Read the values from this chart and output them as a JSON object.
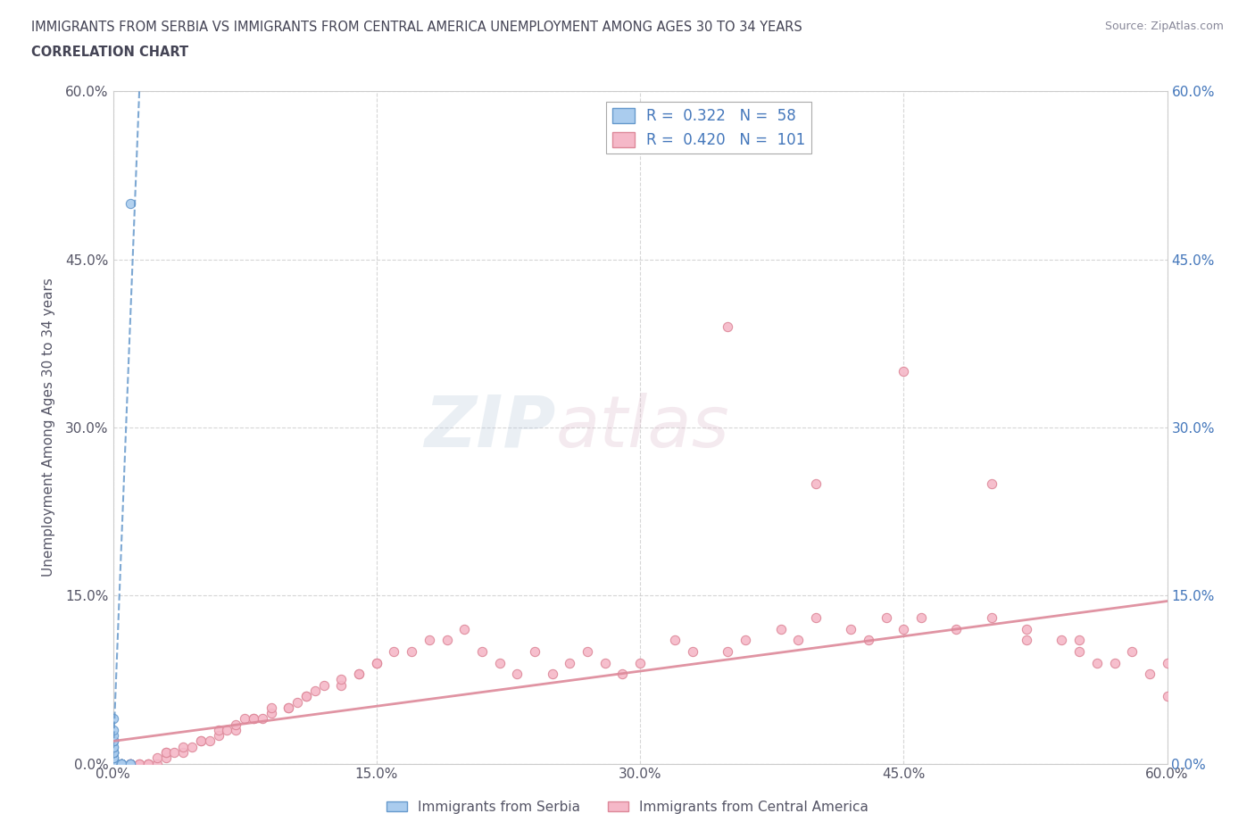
{
  "title_line1": "IMMIGRANTS FROM SERBIA VS IMMIGRANTS FROM CENTRAL AMERICA UNEMPLOYMENT AMONG AGES 30 TO 34 YEARS",
  "title_line2": "CORRELATION CHART",
  "source": "Source: ZipAtlas.com",
  "ylabel": "Unemployment Among Ages 30 to 34 years",
  "xlim": [
    0.0,
    0.6
  ],
  "ylim": [
    0.0,
    0.6
  ],
  "xticks": [
    0.0,
    0.15,
    0.3,
    0.45,
    0.6
  ],
  "yticks": [
    0.0,
    0.15,
    0.3,
    0.45,
    0.6
  ],
  "serbia_color": "#aaccee",
  "serbia_edge_color": "#6699cc",
  "ca_color": "#f5b8c8",
  "ca_edge_color": "#dd8899",
  "serbia_R": 0.322,
  "serbia_N": 58,
  "ca_R": 0.42,
  "ca_N": 101,
  "serbia_trend_color": "#6699cc",
  "ca_trend_color": "#dd8899",
  "legend_label_serbia": "Immigrants from Serbia",
  "legend_label_ca": "Immigrants from Central America",
  "watermark_zip": "ZIP",
  "watermark_atlas": "atlas",
  "background_color": "#ffffff",
  "grid_color": "#cccccc",
  "title_color": "#444455",
  "axis_label_color": "#555566",
  "tick_color": "#555566",
  "right_tick_color": "#4477bb",
  "source_color": "#888899",
  "serbia_x": [
    0.0,
    0.0,
    0.0,
    0.0,
    0.0,
    0.0,
    0.0,
    0.0,
    0.0,
    0.0,
    0.0,
    0.0,
    0.0,
    0.0,
    0.0,
    0.0,
    0.0,
    0.0,
    0.0,
    0.0,
    0.0,
    0.0,
    0.0,
    0.0,
    0.0,
    0.0,
    0.0,
    0.0,
    0.0,
    0.0,
    0.0,
    0.0,
    0.0,
    0.0,
    0.0,
    0.0,
    0.0,
    0.0,
    0.0,
    0.0,
    0.0,
    0.0,
    0.0,
    0.0,
    0.0,
    0.0,
    0.0,
    0.0,
    0.005,
    0.005,
    0.005,
    0.005,
    0.005,
    0.005,
    0.005,
    0.01,
    0.01,
    0.01
  ],
  "serbia_y": [
    0.0,
    0.0,
    0.0,
    0.0,
    0.0,
    0.0,
    0.0,
    0.0,
    0.0,
    0.0,
    0.0,
    0.0,
    0.0,
    0.0,
    0.0,
    0.0,
    0.0,
    0.0,
    0.0,
    0.0,
    0.0,
    0.0,
    0.0,
    0.0,
    0.0,
    0.0,
    0.0,
    0.0,
    0.0,
    0.0,
    0.0,
    0.0,
    0.005,
    0.005,
    0.005,
    0.01,
    0.01,
    0.01,
    0.01,
    0.01,
    0.015,
    0.015,
    0.02,
    0.02,
    0.02,
    0.025,
    0.03,
    0.04,
    0.0,
    0.0,
    0.0,
    0.0,
    0.0,
    0.0,
    0.0,
    0.0,
    0.0,
    0.5
  ],
  "ca_x": [
    0.0,
    0.0,
    0.0,
    0.0,
    0.0,
    0.0,
    0.0,
    0.0,
    0.0,
    0.0,
    0.005,
    0.005,
    0.01,
    0.01,
    0.01,
    0.01,
    0.015,
    0.015,
    0.02,
    0.02,
    0.02,
    0.025,
    0.025,
    0.03,
    0.03,
    0.03,
    0.035,
    0.04,
    0.04,
    0.045,
    0.05,
    0.05,
    0.055,
    0.06,
    0.06,
    0.065,
    0.07,
    0.07,
    0.075,
    0.08,
    0.08,
    0.085,
    0.09,
    0.09,
    0.1,
    0.1,
    0.105,
    0.11,
    0.11,
    0.115,
    0.12,
    0.13,
    0.13,
    0.14,
    0.14,
    0.15,
    0.15,
    0.16,
    0.17,
    0.18,
    0.19,
    0.2,
    0.21,
    0.22,
    0.23,
    0.24,
    0.25,
    0.26,
    0.27,
    0.28,
    0.29,
    0.3,
    0.32,
    0.33,
    0.35,
    0.36,
    0.38,
    0.39,
    0.4,
    0.42,
    0.43,
    0.44,
    0.45,
    0.46,
    0.48,
    0.5,
    0.52,
    0.52,
    0.54,
    0.55,
    0.56,
    0.57,
    0.58,
    0.59,
    0.6,
    0.35,
    0.4,
    0.45,
    0.5,
    0.55,
    0.6
  ],
  "ca_y": [
    0.0,
    0.0,
    0.0,
    0.0,
    0.0,
    0.0,
    0.0,
    0.0,
    0.0,
    0.0,
    0.0,
    0.0,
    0.0,
    0.0,
    0.0,
    0.0,
    0.0,
    0.0,
    0.0,
    0.0,
    0.0,
    0.0,
    0.005,
    0.005,
    0.01,
    0.01,
    0.01,
    0.01,
    0.015,
    0.015,
    0.02,
    0.02,
    0.02,
    0.025,
    0.03,
    0.03,
    0.03,
    0.035,
    0.04,
    0.04,
    0.04,
    0.04,
    0.045,
    0.05,
    0.05,
    0.05,
    0.055,
    0.06,
    0.06,
    0.065,
    0.07,
    0.07,
    0.075,
    0.08,
    0.08,
    0.09,
    0.09,
    0.1,
    0.1,
    0.11,
    0.11,
    0.12,
    0.1,
    0.09,
    0.08,
    0.1,
    0.08,
    0.09,
    0.1,
    0.09,
    0.08,
    0.09,
    0.11,
    0.1,
    0.1,
    0.11,
    0.12,
    0.11,
    0.13,
    0.12,
    0.11,
    0.13,
    0.12,
    0.13,
    0.12,
    0.13,
    0.12,
    0.11,
    0.11,
    0.1,
    0.09,
    0.09,
    0.1,
    0.08,
    0.06,
    0.39,
    0.25,
    0.35,
    0.25,
    0.11,
    0.09
  ],
  "serbia_trend_x0": 0.0,
  "serbia_trend_y0": 0.005,
  "serbia_trend_x1": 0.015,
  "serbia_trend_y1": 0.6,
  "ca_trend_x0": 0.0,
  "ca_trend_y0": 0.02,
  "ca_trend_x1": 0.6,
  "ca_trend_y1": 0.145
}
